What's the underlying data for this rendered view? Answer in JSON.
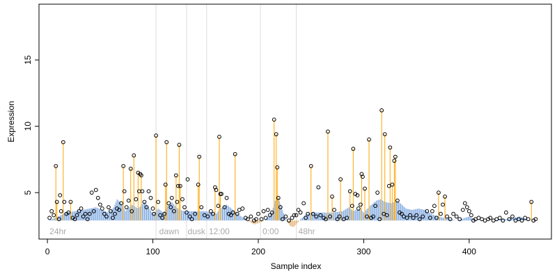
{
  "chart_data": {
    "type": "scatter",
    "title": "",
    "xlabel": "Sample index",
    "ylabel": "Expression",
    "xlim": [
      -8,
      478
    ],
    "ylim": [
      1.5,
      19.2
    ],
    "x_ticks": [
      0,
      100,
      200,
      300,
      400
    ],
    "y_ticks": [
      5,
      10,
      15
    ],
    "baseline": 2.9,
    "grid": false,
    "legend": "none",
    "colors": {
      "points": "#000000",
      "spikes": "#FFA500",
      "profile_above": "#7EA8E0",
      "profile_below": "#E0B070",
      "phase_lines": "#DDDDDD",
      "phase_labels": "#AAAAAA"
    },
    "phase_boundaries": [
      103,
      132,
      151,
      202,
      236
    ],
    "phase_labels": [
      {
        "x": 2,
        "text": "24hr"
      },
      {
        "x": 106,
        "text": "dawn"
      },
      {
        "x": 133,
        "text": "dusk"
      },
      {
        "x": 153,
        "text": "12:00"
      },
      {
        "x": 204,
        "text": "0:00"
      },
      {
        "x": 238,
        "text": "48hr"
      }
    ],
    "profile": [
      [
        1,
        2.9
      ],
      [
        10,
        3.2
      ],
      [
        18,
        3.5
      ],
      [
        26,
        3.6
      ],
      [
        34,
        3.7
      ],
      [
        40,
        3.8
      ],
      [
        46,
        3.9
      ],
      [
        52,
        3.7
      ],
      [
        58,
        3.5
      ],
      [
        63,
        3.9
      ],
      [
        66,
        4.5
      ],
      [
        70,
        4.2
      ],
      [
        74,
        3.6
      ],
      [
        80,
        4.1
      ],
      [
        86,
        3.8
      ],
      [
        92,
        4.3
      ],
      [
        96,
        3.9
      ],
      [
        100,
        3.4
      ],
      [
        105,
        3.8
      ],
      [
        110,
        3.5
      ],
      [
        114,
        4.0
      ],
      [
        118,
        4.3
      ],
      [
        122,
        3.9
      ],
      [
        126,
        3.7
      ],
      [
        130,
        3.6
      ],
      [
        140,
        3.6
      ],
      [
        150,
        3.6
      ],
      [
        155,
        3.5
      ],
      [
        160,
        3.4
      ],
      [
        164,
        3.8
      ],
      [
        170,
        4.1
      ],
      [
        176,
        3.7
      ],
      [
        182,
        3.3
      ],
      [
        188,
        3.0
      ],
      [
        192,
        2.8
      ],
      [
        196,
        2.6
      ],
      [
        200,
        2.7
      ],
      [
        206,
        2.9
      ],
      [
        210,
        3.2
      ],
      [
        213,
        3.6
      ],
      [
        216,
        4.4
      ],
      [
        219,
        4.6
      ],
      [
        222,
        3.9
      ],
      [
        226,
        3.0
      ],
      [
        230,
        2.5
      ],
      [
        233,
        2.4
      ],
      [
        236,
        2.6
      ],
      [
        240,
        3.0
      ],
      [
        246,
        3.4
      ],
      [
        252,
        3.5
      ],
      [
        260,
        3.5
      ],
      [
        270,
        3.5
      ],
      [
        280,
        3.6
      ],
      [
        286,
        3.9
      ],
      [
        290,
        3.6
      ],
      [
        296,
        3.8
      ],
      [
        300,
        3.5
      ],
      [
        306,
        4.0
      ],
      [
        312,
        4.4
      ],
      [
        316,
        4.5
      ],
      [
        320,
        4.3
      ],
      [
        326,
        4.2
      ],
      [
        332,
        4.4
      ],
      [
        336,
        4.1
      ],
      [
        340,
        3.8
      ],
      [
        346,
        3.7
      ],
      [
        352,
        3.8
      ],
      [
        358,
        3.7
      ],
      [
        364,
        3.4
      ],
      [
        370,
        3.2
      ],
      [
        376,
        3.1
      ],
      [
        382,
        3.0
      ],
      [
        388,
        2.9
      ],
      [
        396,
        3.1
      ],
      [
        400,
        3.2
      ],
      [
        404,
        3.0
      ],
      [
        410,
        2.9
      ],
      [
        420,
        2.9
      ],
      [
        430,
        3.0
      ],
      [
        436,
        3.0
      ],
      [
        442,
        3.1
      ],
      [
        448,
        3.2
      ],
      [
        454,
        3.0
      ],
      [
        460,
        2.9
      ],
      [
        462,
        2.9
      ]
    ],
    "spikes": [
      [
        8,
        7.0
      ],
      [
        15,
        8.8
      ],
      [
        9,
        4.3
      ],
      [
        22,
        4.3
      ],
      [
        82,
        7.8
      ],
      [
        72,
        7.0
      ],
      [
        79,
        6.8
      ],
      [
        86,
        6.5
      ],
      [
        89,
        6.3
      ],
      [
        103,
        9.3
      ],
      [
        113,
        8.8
      ],
      [
        125,
        8.6
      ],
      [
        112,
        5.6
      ],
      [
        122,
        6.3
      ],
      [
        126,
        5.5
      ],
      [
        143,
        5.6
      ],
      [
        144,
        7.7
      ],
      [
        163,
        9.2
      ],
      [
        159,
        5.4
      ],
      [
        164,
        4.9
      ],
      [
        178,
        7.9
      ],
      [
        215,
        10.5
      ],
      [
        217,
        9.4
      ],
      [
        218,
        6.9
      ],
      [
        219,
        4.6
      ],
      [
        250,
        7.0
      ],
      [
        266,
        9.6
      ],
      [
        278,
        6.0
      ],
      [
        270,
        4.7
      ],
      [
        287,
        5.1
      ],
      [
        290,
        8.3
      ],
      [
        298,
        6.4
      ],
      [
        301,
        5.3
      ],
      [
        305,
        9.0
      ],
      [
        317,
        11.2
      ],
      [
        320,
        9.4
      ],
      [
        325,
        8.4
      ],
      [
        327,
        5.6
      ],
      [
        329,
        7.4
      ],
      [
        330,
        7.7
      ],
      [
        371,
        5.0
      ],
      [
        377,
        4.7
      ],
      [
        459,
        4.3
      ]
    ],
    "points": [
      [
        2,
        3.1
      ],
      [
        4,
        3.6
      ],
      [
        6,
        3.3
      ],
      [
        8,
        7.0
      ],
      [
        9,
        4.3
      ],
      [
        11,
        3.0
      ],
      [
        12,
        4.8
      ],
      [
        13,
        3.6
      ],
      [
        15,
        8.8
      ],
      [
        16,
        4.3
      ],
      [
        18,
        3.4
      ],
      [
        20,
        3.5
      ],
      [
        22,
        4.3
      ],
      [
        24,
        3.1
      ],
      [
        26,
        3.0
      ],
      [
        28,
        3.3
      ],
      [
        30,
        3.6
      ],
      [
        32,
        3.8
      ],
      [
        34,
        3.2
      ],
      [
        36,
        3.4
      ],
      [
        38,
        3.0
      ],
      [
        40,
        3.4
      ],
      [
        42,
        5.0
      ],
      [
        44,
        3.6
      ],
      [
        46,
        5.2
      ],
      [
        48,
        4.6
      ],
      [
        50,
        4.1
      ],
      [
        52,
        3.8
      ],
      [
        54,
        3.4
      ],
      [
        56,
        3.2
      ],
      [
        58,
        3.9
      ],
      [
        60,
        3.6
      ],
      [
        62,
        3.1
      ],
      [
        64,
        3.4
      ],
      [
        66,
        3.8
      ],
      [
        68,
        3.7
      ],
      [
        70,
        4.2
      ],
      [
        72,
        7.0
      ],
      [
        73,
        5.1
      ],
      [
        75,
        3.9
      ],
      [
        77,
        4.4
      ],
      [
        79,
        6.8
      ],
      [
        80,
        3.6
      ],
      [
        82,
        7.8
      ],
      [
        84,
        4.5
      ],
      [
        86,
        6.5
      ],
      [
        87,
        5.1
      ],
      [
        88,
        6.4
      ],
      [
        89,
        6.3
      ],
      [
        90,
        5.1
      ],
      [
        92,
        4.3
      ],
      [
        94,
        3.9
      ],
      [
        96,
        5.1
      ],
      [
        98,
        4.6
      ],
      [
        100,
        3.8
      ],
      [
        101,
        3.4
      ],
      [
        103,
        9.3
      ],
      [
        105,
        4.3
      ],
      [
        107,
        3.3
      ],
      [
        109,
        3.1
      ],
      [
        111,
        3.4
      ],
      [
        112,
        5.6
      ],
      [
        113,
        8.8
      ],
      [
        115,
        4.2
      ],
      [
        117,
        3.9
      ],
      [
        118,
        4.6
      ],
      [
        120,
        3.6
      ],
      [
        122,
        6.3
      ],
      [
        123,
        4.3
      ],
      [
        124,
        5.5
      ],
      [
        125,
        8.6
      ],
      [
        126,
        5.5
      ],
      [
        128,
        4.5
      ],
      [
        130,
        3.9
      ],
      [
        132,
        3.5
      ],
      [
        133,
        6.0
      ],
      [
        135,
        3.2
      ],
      [
        137,
        3.0
      ],
      [
        140,
        3.4
      ],
      [
        143,
        5.6
      ],
      [
        144,
        7.7
      ],
      [
        146,
        3.9
      ],
      [
        149,
        3.3
      ],
      [
        152,
        3.2
      ],
      [
        155,
        3.6
      ],
      [
        157,
        3.4
      ],
      [
        159,
        5.4
      ],
      [
        160,
        5.2
      ],
      [
        162,
        4.0
      ],
      [
        163,
        9.2
      ],
      [
        164,
        4.9
      ],
      [
        165,
        4.9
      ],
      [
        168,
        3.9
      ],
      [
        170,
        4.6
      ],
      [
        172,
        3.4
      ],
      [
        174,
        3.3
      ],
      [
        176,
        3.5
      ],
      [
        178,
        7.9
      ],
      [
        180,
        3.4
      ],
      [
        182,
        3.7
      ],
      [
        185,
        3.8
      ],
      [
        188,
        3.1
      ],
      [
        190,
        3.0
      ],
      [
        193,
        3.2
      ],
      [
        196,
        2.9
      ],
      [
        198,
        3.0
      ],
      [
        200,
        3.4
      ],
      [
        203,
        3.0
      ],
      [
        205,
        3.6
      ],
      [
        207,
        3.1
      ],
      [
        209,
        3.7
      ],
      [
        211,
        3.3
      ],
      [
        213,
        3.5
      ],
      [
        215,
        10.5
      ],
      [
        217,
        9.4
      ],
      [
        218,
        6.9
      ],
      [
        219,
        4.6
      ],
      [
        221,
        3.9
      ],
      [
        223,
        3.0
      ],
      [
        226,
        3.2
      ],
      [
        229,
        2.9
      ],
      [
        232,
        3.1
      ],
      [
        234,
        3.3
      ],
      [
        236,
        3.3
      ],
      [
        238,
        3.7
      ],
      [
        240,
        3.5
      ],
      [
        243,
        4.2
      ],
      [
        245,
        3.1
      ],
      [
        247,
        3.4
      ],
      [
        250,
        7.0
      ],
      [
        252,
        3.4
      ],
      [
        255,
        3.2
      ],
      [
        257,
        5.4
      ],
      [
        259,
        3.3
      ],
      [
        262,
        3.1
      ],
      [
        264,
        3.0
      ],
      [
        266,
        9.6
      ],
      [
        268,
        3.2
      ],
      [
        270,
        4.7
      ],
      [
        272,
        3.7
      ],
      [
        275,
        3.0
      ],
      [
        277,
        3.2
      ],
      [
        278,
        6.0
      ],
      [
        281,
        3.0
      ],
      [
        284,
        3.1
      ],
      [
        287,
        5.1
      ],
      [
        289,
        4.0
      ],
      [
        290,
        8.3
      ],
      [
        292,
        4.9
      ],
      [
        294,
        4.8
      ],
      [
        295,
        3.8
      ],
      [
        297,
        4.1
      ],
      [
        298,
        6.4
      ],
      [
        299,
        6.2
      ],
      [
        301,
        5.3
      ],
      [
        303,
        3.2
      ],
      [
        305,
        9.0
      ],
      [
        307,
        3.1
      ],
      [
        309,
        3.2
      ],
      [
        311,
        4.0
      ],
      [
        313,
        5.0
      ],
      [
        315,
        3.0
      ],
      [
        317,
        11.2
      ],
      [
        319,
        3.4
      ],
      [
        320,
        9.4
      ],
      [
        322,
        3.3
      ],
      [
        324,
        5.5
      ],
      [
        325,
        8.4
      ],
      [
        327,
        5.6
      ],
      [
        329,
        7.4
      ],
      [
        330,
        7.7
      ],
      [
        332,
        4.4
      ],
      [
        334,
        3.5
      ],
      [
        336,
        3.4
      ],
      [
        338,
        3.2
      ],
      [
        341,
        3.1
      ],
      [
        344,
        3.3
      ],
      [
        347,
        3.1
      ],
      [
        350,
        3.3
      ],
      [
        353,
        3.0
      ],
      [
        356,
        3.2
      ],
      [
        360,
        3.6
      ],
      [
        363,
        3.1
      ],
      [
        365,
        3.6
      ],
      [
        367,
        4.0
      ],
      [
        369,
        3.1
      ],
      [
        371,
        5.0
      ],
      [
        373,
        3.4
      ],
      [
        375,
        4.1
      ],
      [
        377,
        4.7
      ],
      [
        379,
        3.2
      ],
      [
        382,
        3.0
      ],
      [
        385,
        3.4
      ],
      [
        388,
        3.2
      ],
      [
        391,
        3.0
      ],
      [
        394,
        3.7
      ],
      [
        396,
        4.2
      ],
      [
        398,
        3.9
      ],
      [
        400,
        3.6
      ],
      [
        402,
        3.3
      ],
      [
        404,
        2.9
      ],
      [
        406,
        3.0
      ],
      [
        409,
        3.1
      ],
      [
        412,
        3.0
      ],
      [
        415,
        2.9
      ],
      [
        418,
        3.0
      ],
      [
        420,
        3.1
      ],
      [
        423,
        2.9
      ],
      [
        426,
        3.0
      ],
      [
        429,
        3.1
      ],
      [
        432,
        2.9
      ],
      [
        435,
        3.5
      ],
      [
        438,
        3.0
      ],
      [
        441,
        3.2
      ],
      [
        444,
        2.9
      ],
      [
        447,
        3.0
      ],
      [
        450,
        2.9
      ],
      [
        453,
        3.1
      ],
      [
        456,
        3.0
      ],
      [
        459,
        4.3
      ],
      [
        461,
        2.9
      ],
      [
        463,
        3.0
      ]
    ]
  }
}
